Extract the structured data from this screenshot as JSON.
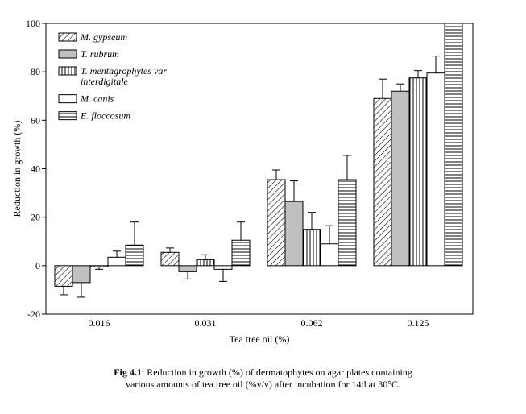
{
  "chart_data": {
    "type": "bar",
    "xlabel": "Tea tree oil (%)",
    "ylabel": "Reduction in growth (%)",
    "ylim": [
      -20,
      100
    ],
    "yticks": [
      -20,
      0,
      20,
      40,
      60,
      80,
      100
    ],
    "ytick_labels": [
      "-20",
      "0",
      "20",
      "40",
      "60",
      "80",
      "100"
    ],
    "categories": [
      "0.016",
      "0.031",
      "0.062",
      "0.125"
    ],
    "legend_position": "top-left",
    "series": [
      {
        "name": "M. gypseum",
        "pattern": "diagonal",
        "color": "#ffffff",
        "values": [
          -8.5,
          5.5,
          35.5,
          69
        ],
        "errors": [
          3.5,
          1.8,
          4,
          8
        ]
      },
      {
        "name": "T. rubrum",
        "pattern": "solid",
        "color": "#c0c0c0",
        "values": [
          -7,
          -2.5,
          26.5,
          72
        ],
        "errors": [
          6,
          3,
          8.5,
          3
        ]
      },
      {
        "name": "T. mentagrophytes var interdigitale",
        "name_lines": [
          "T. mentagrophytes var",
          "interdigitale"
        ],
        "pattern": "vertical",
        "color": "#ffffff",
        "values": [
          -0.5,
          2.5,
          15,
          77.5
        ],
        "errors": [
          1,
          2,
          7,
          3
        ]
      },
      {
        "name": "M. canis",
        "pattern": "none",
        "color": "#ffffff",
        "values": [
          3.5,
          -1.5,
          9,
          79.5
        ],
        "errors": [
          2.5,
          5,
          7.5,
          7
        ]
      },
      {
        "name": "E. floccosum",
        "pattern": "horizontal",
        "color": "#ffffff",
        "values": [
          8.5,
          10.5,
          35.5,
          100
        ],
        "errors": [
          9.5,
          7.5,
          10,
          0
        ]
      }
    ]
  },
  "caption": {
    "fig_label": "Fig 4.1",
    "line1": ": Reduction in growth (%) of dermatophytes on agar plates containing",
    "line2": "various amounts of tea tree oil (%v/v) after incubation for 14d at 30°C."
  }
}
